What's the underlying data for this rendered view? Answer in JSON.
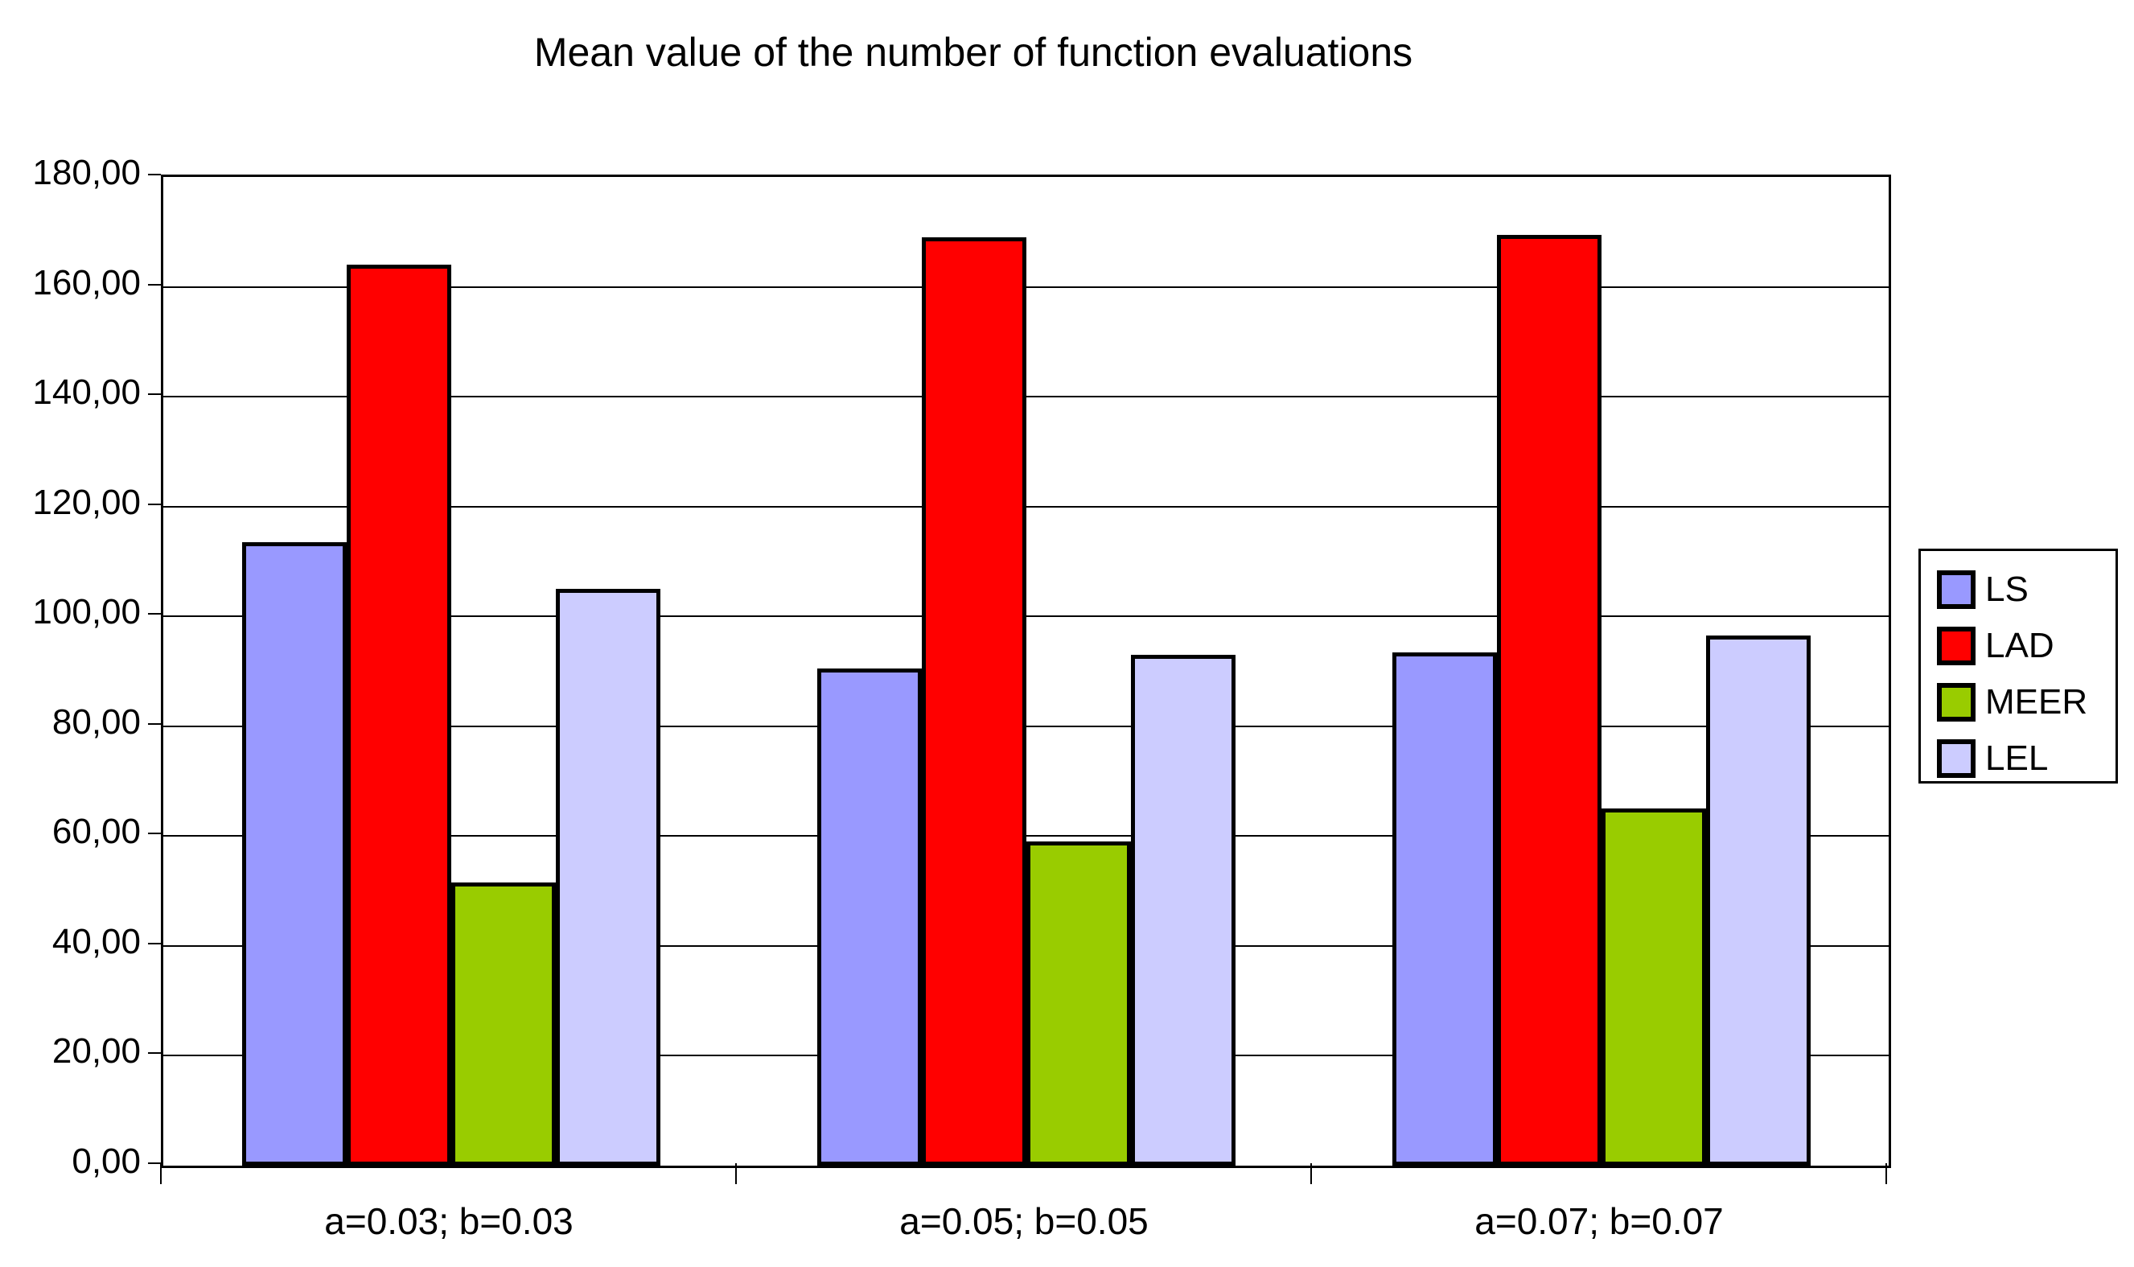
{
  "title": "Mean value of the number of function evaluations",
  "chart_data": {
    "type": "bar",
    "title": "Mean value of the number of function evaluations",
    "categories": [
      "a=0.03; b=0.03",
      "a=0.05; b=0.05",
      "a=0.07; b=0.07"
    ],
    "series": [
      {
        "name": "LS",
        "color": "#9999FF",
        "values": [
          113.5,
          90.5,
          93.5
        ]
      },
      {
        "name": "LAD",
        "color": "#FF0000",
        "values": [
          164.0,
          169.0,
          169.5
        ]
      },
      {
        "name": "MEER",
        "color": "#99CC00",
        "values": [
          51.5,
          59.0,
          65.0
        ]
      },
      {
        "name": "LEL",
        "color": "#CCCCFF",
        "values": [
          105.0,
          93.0,
          96.5
        ]
      }
    ],
    "xlabel": "",
    "ylabel": "",
    "ylim": [
      0,
      180
    ],
    "ytick_step": 20,
    "ytick_labels": [
      "0,00",
      "20,00",
      "40,00",
      "60,00",
      "80,00",
      "100,00",
      "120,00",
      "140,00",
      "160,00",
      "180,00"
    ],
    "grid": true,
    "gridline_color": "#000000",
    "bar_outline_color": "#000000",
    "background_color": "#FFFFFF",
    "legend_position": "right",
    "legend_entries": [
      "LS",
      "LAD",
      "MEER",
      "LEL"
    ]
  }
}
